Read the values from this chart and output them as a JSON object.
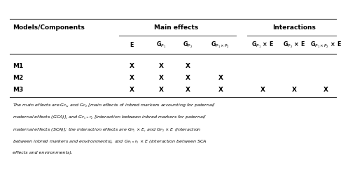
{
  "title_row": "Models/Components",
  "group1_label": "Main effects",
  "group2_label": "Interactions",
  "col_headers_display": [
    "E",
    "G$_{P_1}$",
    "G$_{P_2}$",
    "G$_{P_1\\times P_2}$",
    "G$_{P_1}$ × E",
    "G$_{P_2}$ × E",
    "G$_{P_1\\times P_2}$ × E"
  ],
  "rows": [
    {
      "label": "M1",
      "marks": [
        true,
        true,
        true,
        false,
        false,
        false,
        false
      ]
    },
    {
      "label": "M2",
      "marks": [
        true,
        true,
        true,
        true,
        false,
        false,
        false
      ]
    },
    {
      "label": "M3",
      "marks": [
        true,
        true,
        true,
        true,
        true,
        true,
        true
      ]
    }
  ],
  "footnote_lines": [
    "The main effects are G$_{P_1}$, and G$_{P_2}$ [main effects of inbred markers accounting for paternal/",
    "maternal effects (GCA)], and G$_{P_1 \\times P_2}$ [interaction between inbred markers for paternal/",
    "maternal effects (SCA)]; the interaction effects are G$_{P_1}$ × E, and G$_{P_2}$ × E (interaction",
    "between inbred markers and environments), and G$_{P_1 \\times P_2}$ × E (interaction between SCA",
    "effects and environments)."
  ],
  "bg_color": "#ffffff",
  "text_color": "#000000",
  "line_color": "#333333"
}
